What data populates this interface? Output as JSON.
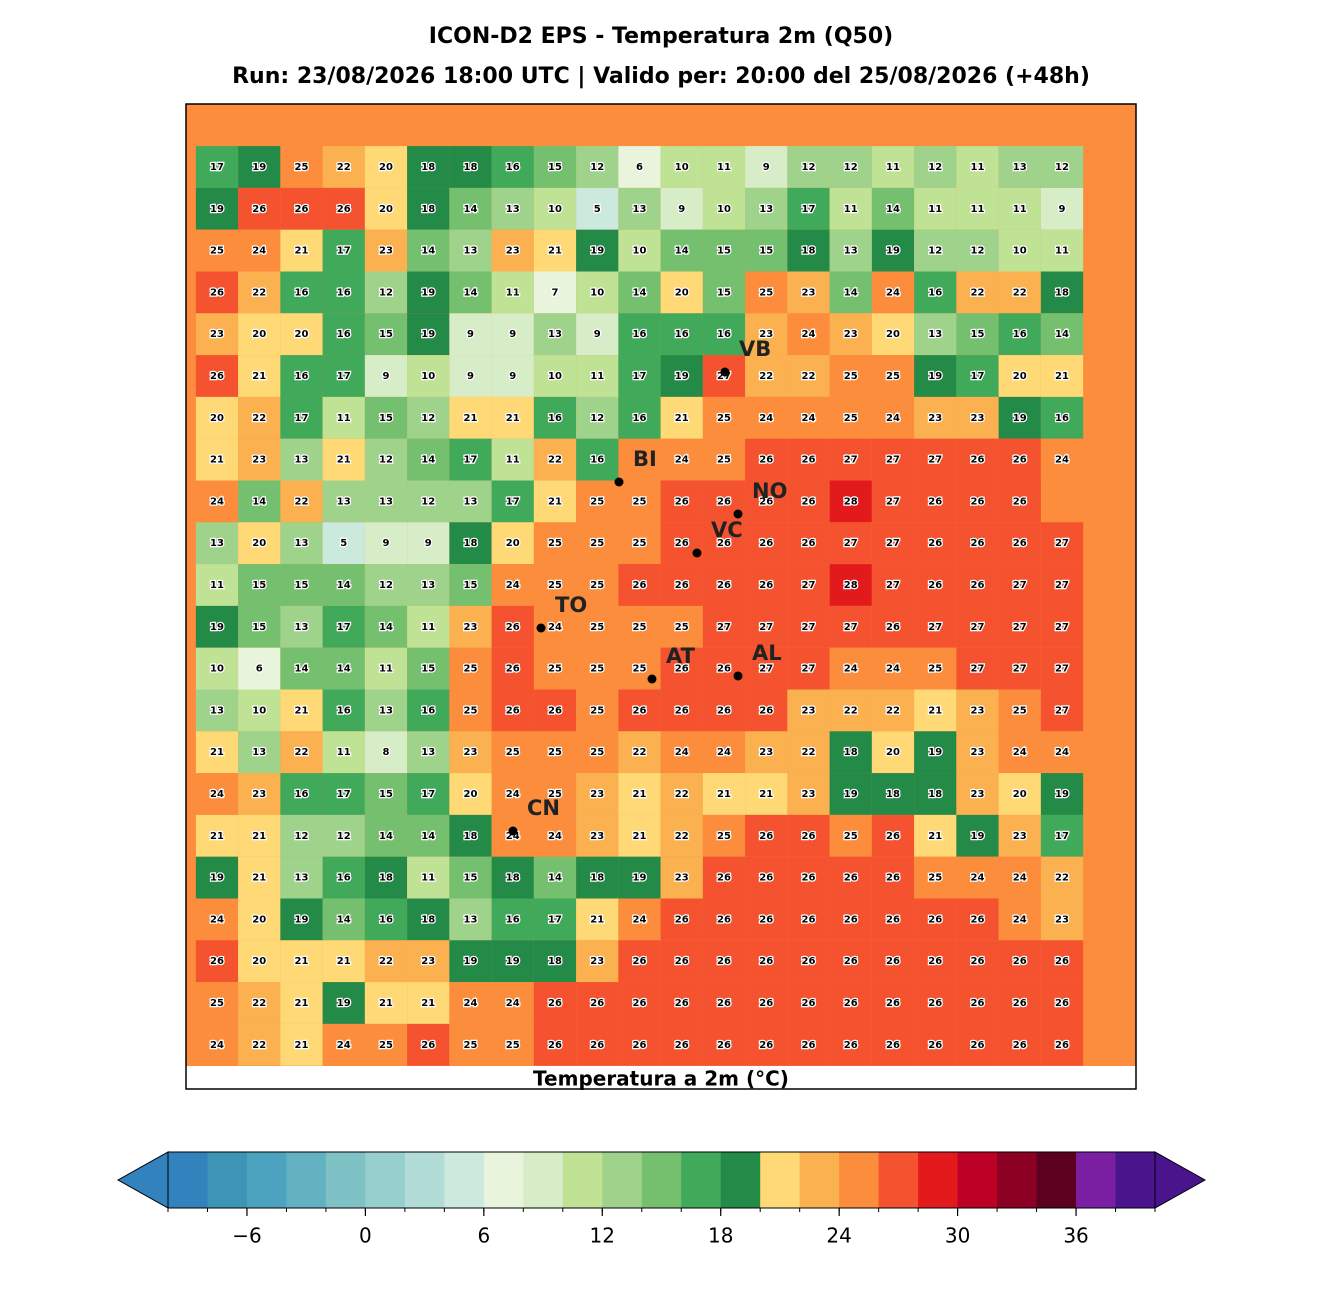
{
  "title": "ICON-D2 EPS - Temperatura 2m (Q50)",
  "subtitle": "Run: 23/08/2026 18:00 UTC | Valido per: 20:00 del 25/08/2026 (+48h)",
  "map": {
    "grid_values": [
      [
        17,
        19,
        25,
        22,
        20,
        18,
        18,
        16,
        15,
        12,
        6,
        10,
        11,
        9,
        12,
        12,
        11,
        12,
        11,
        13,
        12
      ],
      [
        19,
        26,
        26,
        26,
        20,
        18,
        14,
        13,
        10,
        5,
        13,
        9,
        10,
        13,
        17,
        11,
        14,
        11,
        11,
        11,
        9
      ],
      [
        25,
        24,
        21,
        17,
        23,
        14,
        13,
        23,
        21,
        19,
        10,
        14,
        15,
        15,
        18,
        13,
        19,
        12,
        12,
        10,
        11
      ],
      [
        26,
        22,
        16,
        16,
        12,
        19,
        14,
        11,
        7,
        10,
        14,
        20,
        15,
        25,
        23,
        14,
        24,
        16,
        22,
        22,
        18
      ],
      [
        23,
        20,
        20,
        16,
        15,
        19,
        9,
        9,
        13,
        9,
        16,
        16,
        16,
        23,
        24,
        23,
        20,
        13,
        15,
        16,
        14
      ],
      [
        26,
        21,
        16,
        17,
        9,
        10,
        9,
        9,
        10,
        11,
        17,
        19,
        27,
        22,
        22,
        25,
        25,
        19,
        17,
        20,
        21
      ],
      [
        20,
        22,
        17,
        11,
        15,
        12,
        21,
        21,
        16,
        12,
        16,
        21,
        25,
        24,
        24,
        25,
        24,
        23,
        23,
        19,
        16
      ],
      [
        21,
        23,
        13,
        21,
        12,
        14,
        17,
        11,
        22,
        16,
        null,
        24,
        25,
        26,
        26,
        27,
        27,
        27,
        26,
        26,
        24
      ],
      [
        24,
        14,
        22,
        13,
        13,
        12,
        13,
        17,
        21,
        25,
        25,
        26,
        26,
        26,
        26,
        28,
        27,
        26,
        26,
        26,
        null
      ],
      [
        13,
        20,
        13,
        5,
        9,
        9,
        18,
        20,
        25,
        25,
        25,
        26,
        26,
        26,
        26,
        27,
        27,
        26,
        26,
        26,
        27
      ],
      [
        11,
        15,
        15,
        14,
        12,
        13,
        15,
        24,
        25,
        25,
        26,
        26,
        26,
        26,
        27,
        28,
        27,
        26,
        26,
        27,
        27
      ],
      [
        19,
        15,
        13,
        17,
        14,
        11,
        23,
        26,
        24,
        25,
        25,
        25,
        27,
        27,
        27,
        27,
        26,
        27,
        27,
        27,
        27
      ],
      [
        10,
        6,
        14,
        14,
        11,
        15,
        25,
        26,
        25,
        25,
        25,
        26,
        26,
        27,
        27,
        24,
        24,
        25,
        27,
        27,
        27
      ],
      [
        13,
        10,
        21,
        16,
        13,
        16,
        25,
        26,
        26,
        25,
        26,
        26,
        26,
        26,
        23,
        22,
        22,
        21,
        23,
        25,
        27
      ],
      [
        21,
        13,
        22,
        11,
        8,
        13,
        23,
        25,
        25,
        25,
        22,
        24,
        24,
        23,
        22,
        18,
        20,
        19,
        23,
        24,
        24
      ],
      [
        24,
        23,
        16,
        17,
        15,
        17,
        20,
        24,
        25,
        23,
        21,
        22,
        21,
        21,
        23,
        19,
        18,
        18,
        23,
        20,
        19
      ],
      [
        21,
        21,
        12,
        12,
        14,
        14,
        18,
        24,
        24,
        23,
        21,
        22,
        25,
        26,
        26,
        25,
        26,
        21,
        19,
        23,
        17
      ],
      [
        19,
        21,
        13,
        16,
        18,
        11,
        15,
        18,
        14,
        18,
        19,
        23,
        26,
        26,
        26,
        26,
        26,
        25,
        24,
        24,
        22
      ],
      [
        24,
        20,
        19,
        14,
        16,
        18,
        13,
        16,
        17,
        21,
        24,
        26,
        26,
        26,
        26,
        26,
        26,
        26,
        26,
        24,
        23
      ],
      [
        26,
        20,
        21,
        21,
        22,
        23,
        19,
        19,
        18,
        23,
        26,
        26,
        26,
        26,
        26,
        26,
        26,
        26,
        26,
        26,
        26
      ],
      [
        25,
        22,
        21,
        19,
        21,
        21,
        24,
        24,
        26,
        26,
        26,
        26,
        26,
        26,
        26,
        26,
        26,
        26,
        26,
        26,
        26
      ],
      [
        24,
        22,
        21,
        24,
        25,
        26,
        25,
        25,
        26,
        26,
        26,
        26,
        26,
        26,
        26,
        26,
        26,
        26,
        26,
        26,
        26
      ]
    ],
    "cities": [
      "VB",
      "BI",
      "NO",
      "VC",
      "TO",
      "AT",
      "AL",
      "CN"
    ]
  },
  "colorbar": {
    "label": "Temperatura a 2m (°C)",
    "extend": "both",
    "levels": [
      -10,
      -8,
      -6,
      -4,
      -2,
      0,
      2,
      4,
      6,
      8,
      10,
      12,
      14,
      16,
      18,
      20,
      22,
      24,
      26,
      28,
      30,
      32,
      34,
      36,
      38,
      40
    ],
    "colors": [
      "#3182bd",
      "#3c95b4",
      "#4ba3bf",
      "#62b2c2",
      "#7fc2c6",
      "#97cfcf",
      "#b2dcd6",
      "#cce9de",
      "#e8f5dc",
      "#d7edc8",
      "#c0e294",
      "#9fd38b",
      "#75c06f",
      "#41a95a",
      "#238a47",
      "#fed976",
      "#fbb14f",
      "#fb8d3c",
      "#f5522f",
      "#e31a1c",
      "#bd0026",
      "#8b0023",
      "#5c001f",
      "#7b1fa2",
      "#4a148c"
    ],
    "ticks": [
      {
        "value": -6,
        "label": "−6"
      },
      0,
      6,
      12,
      18,
      24,
      30,
      36
    ]
  }
}
